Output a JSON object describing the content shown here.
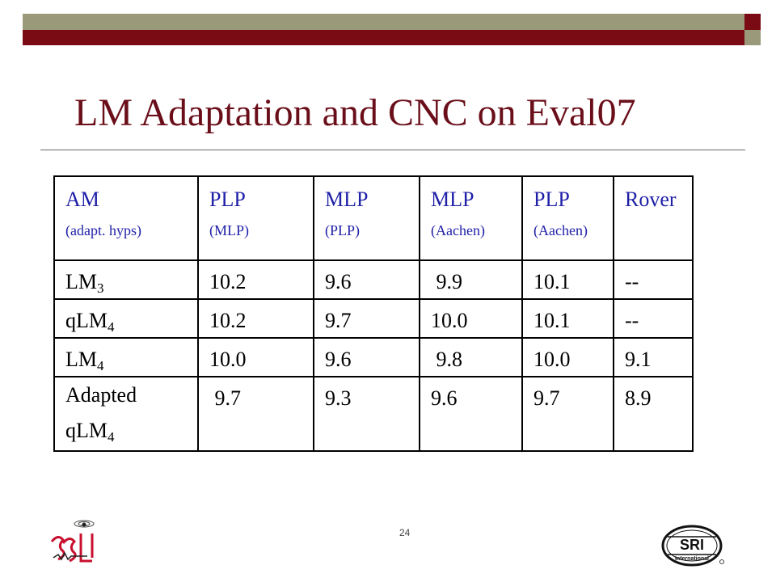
{
  "slide": {
    "title": "LM Adaptation and CNC on Eval07",
    "page_number": "24",
    "logos": {
      "left": "SSLI lab logo",
      "right_text": "SRI",
      "right_subtext": "International"
    }
  },
  "table": {
    "headers": [
      {
        "main": "AM",
        "sub": "(adapt. hyps)"
      },
      {
        "main": "PLP",
        "sub": "(MLP)"
      },
      {
        "main": "MLP",
        "sub": "(PLP)"
      },
      {
        "main": "MLP",
        "sub": "(Aachen)"
      },
      {
        "main": "PLP",
        "sub": "(Aachen)"
      },
      {
        "main": "Rover",
        "sub": ""
      }
    ],
    "rows": [
      {
        "label": "LM",
        "label_sub": "3",
        "values": [
          "10.2",
          "9.6",
          " 9.9",
          "10.1",
          "--"
        ]
      },
      {
        "label": "qLM",
        "label_sub": "4",
        "values": [
          "10.2",
          "9.7",
          "10.0",
          "10.1",
          "--"
        ]
      },
      {
        "label": "LM",
        "label_sub": "4",
        "values": [
          "10.0",
          "9.6",
          " 9.8",
          "10.0",
          "9.1"
        ]
      },
      {
        "label_line1": "Adapted",
        "label": "qLM",
        "label_sub": "4",
        "values": [
          " 9.7",
          "9.3",
          "9.6",
          "9.7",
          "8.9"
        ]
      }
    ]
  },
  "colors": {
    "title": "#6a0f1a",
    "header_text": "#1f1fa8",
    "bar_gray": "#9a9a7a",
    "bar_red": "#7a0a14"
  }
}
